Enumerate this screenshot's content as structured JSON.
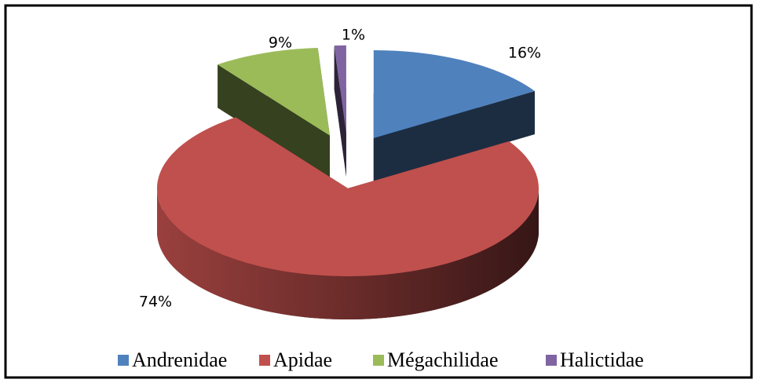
{
  "chart_data": {
    "type": "pie",
    "categories": [
      "Andrenidae",
      "Apidae",
      "Mégachilidae",
      "Halictidae"
    ],
    "values": [
      16,
      74,
      9,
      1
    ],
    "value_labels": [
      "16%",
      "74%",
      "9%",
      "1%"
    ],
    "colors": [
      "#4f81bd",
      "#c0504d",
      "#9bbb59",
      "#8064a2"
    ],
    "legend": "bottom"
  }
}
